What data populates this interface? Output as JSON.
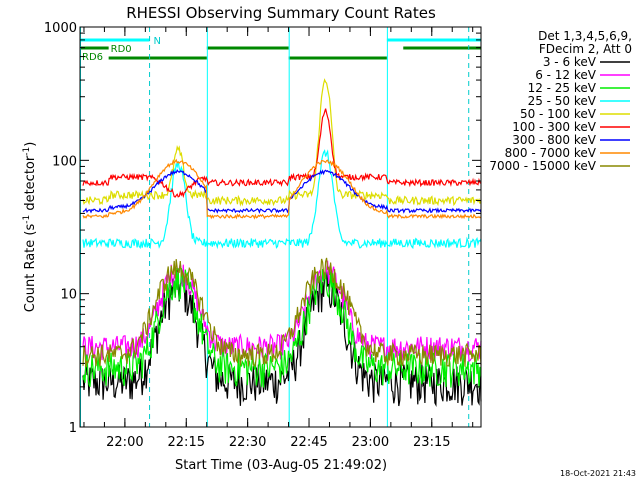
{
  "chart_data": {
    "type": "line",
    "title": "RHESSI Observing Summary Count Rates",
    "ylabel_main": "Count Rate (s",
    "ylabel_sup1": "-1",
    "ylabel_mid": " detector",
    "ylabel_sup2": "-1",
    "ylabel_end": ")",
    "xlabel": "Start Time (03-Aug-05 21:49:02)",
    "footer": "18-Oct-2021 21:43",
    "x_range_minutes": [
      0,
      98
    ],
    "y_log": true,
    "ylim": [
      1,
      1000
    ],
    "y_ticks": [
      {
        "v": 1,
        "label": "1"
      },
      {
        "v": 10,
        "label": "10"
      },
      {
        "v": 100,
        "label": "100"
      },
      {
        "v": 1000,
        "label": "1000"
      }
    ],
    "x_ticks": [
      {
        "m": 10.97,
        "label": "22:00"
      },
      {
        "m": 25.97,
        "label": "22:15"
      },
      {
        "m": 40.97,
        "label": "22:30"
      },
      {
        "m": 55.97,
        "label": "22:45"
      },
      {
        "m": 70.97,
        "label": "23:00"
      },
      {
        "m": 85.97,
        "label": "23:15"
      }
    ],
    "legend_header": [
      "Det 1,3,4,5,6,9,",
      "FDecim 2, Att 0"
    ],
    "series": [
      {
        "name": "3 - 6 keV",
        "color": "#000000"
      },
      {
        "name": "6 - 12 keV",
        "color": "#ff00ff"
      },
      {
        "name": "12 - 25 keV",
        "color": "#00ee00"
      },
      {
        "name": "25 - 50 keV",
        "color": "#00ffff"
      },
      {
        "name": "50 - 100 keV",
        "color": "#dddd00"
      },
      {
        "name": "100 - 300 keV",
        "color": "#ff0000"
      },
      {
        "name": "300 - 800 keV",
        "color": "#0000ff"
      },
      {
        "name": "800 - 7000 keV",
        "color": "#ff8800"
      },
      {
        "name": "7000 - 15000 keV",
        "color": "#888800"
      }
    ],
    "flag_labels": {
      "n": "N",
      "rd0": "RD0",
      "rd6": "RD6"
    },
    "flags": {
      "N": {
        "color": "#00ffff",
        "segments": [
          [
            0,
            17
          ],
          [
            75,
            98
          ]
        ]
      },
      "RD0": {
        "color": "#008800",
        "segments": [
          [
            0,
            7
          ],
          [
            31,
            51
          ],
          [
            79,
            98
          ]
        ]
      },
      "RD6": {
        "color": "#008800",
        "segments": [
          [
            7,
            31
          ],
          [
            51,
            75
          ]
        ]
      }
    },
    "night_markers_minutes": [
      17,
      95
    ],
    "gap_markers_minutes": [
      0,
      31,
      51,
      75
    ],
    "peaks_minutes": [
      24,
      60
    ]
  }
}
